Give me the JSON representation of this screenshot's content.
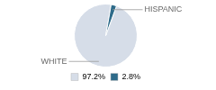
{
  "chart_data": {
    "type": "pie",
    "categories": [
      "WHITE",
      "HISPANIC"
    ],
    "values": [
      97.2,
      2.8
    ],
    "value_labels": [
      "97.2%",
      "2.8%"
    ],
    "colors": [
      "#d6dde8",
      "#2e6b8a"
    ],
    "legend": "bottom"
  }
}
